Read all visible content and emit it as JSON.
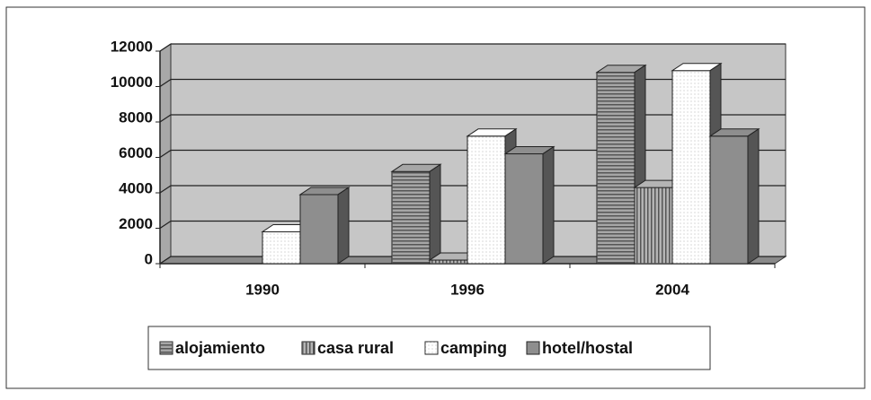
{
  "chart_data": {
    "type": "bar3d",
    "categories": [
      "1990",
      "1996",
      "2004"
    ],
    "series": [
      {
        "name": "alojamiento",
        "color": "#a6a6a6",
        "values": [
          0,
          5200,
          10800
        ]
      },
      {
        "name": "casa rural",
        "color": "#b4b4b4",
        "values": [
          0,
          200,
          4300
        ]
      },
      {
        "name": "camping",
        "color": "#ffffff",
        "values": [
          1800,
          7200,
          10900
        ]
      },
      {
        "name": "hotel/hostal",
        "color": "#8e8e8e",
        "values": [
          3900,
          6200,
          7200
        ]
      }
    ],
    "ylim": [
      0,
      12000
    ],
    "yticks": [
      0,
      2000,
      4000,
      6000,
      8000,
      10000,
      12000
    ],
    "grid": true,
    "legend": "bottom"
  }
}
